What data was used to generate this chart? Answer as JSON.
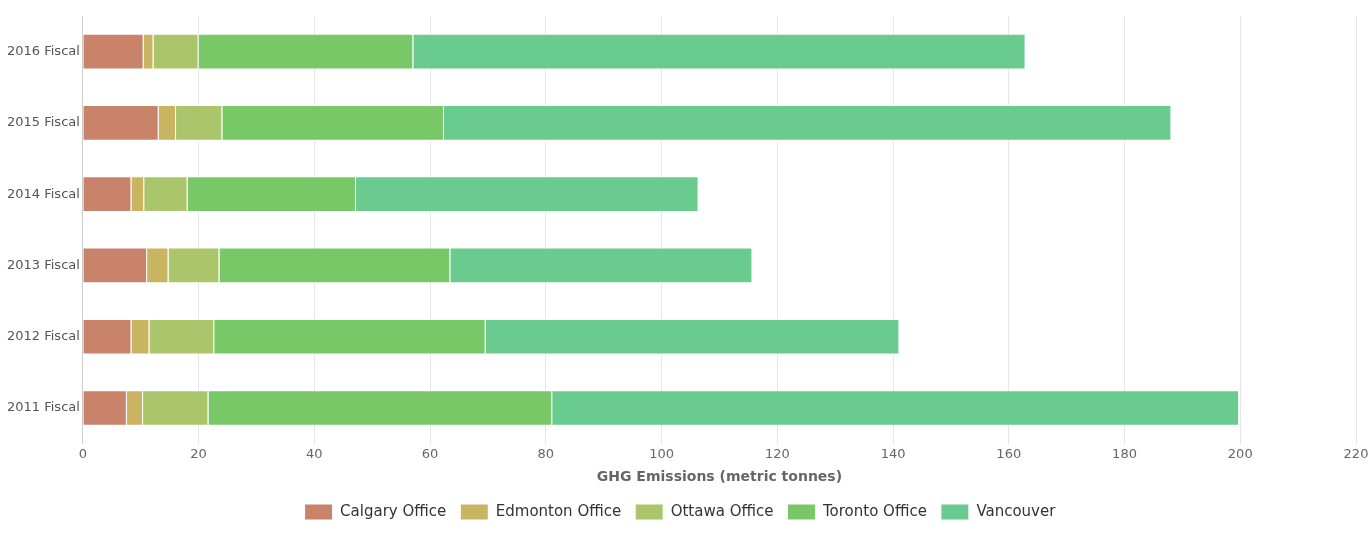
{
  "chart_data": {
    "type": "bar",
    "orientation": "horizontal",
    "stacked": true,
    "categories": [
      "2016 Fiscal",
      "2015 Fiscal",
      "2014 Fiscal",
      "2013 Fiscal",
      "2012 Fiscal",
      "2011 Fiscal"
    ],
    "series": [
      {
        "name": "Calgary Office",
        "color": "#c8836a",
        "values": [
          10.5,
          13.1,
          8.4,
          11.1,
          8.4,
          7.6
        ]
      },
      {
        "name": "Edmonton Office",
        "color": "#c9b462",
        "values": [
          1.7,
          3.0,
          2.2,
          3.7,
          3.1,
          2.8
        ]
      },
      {
        "name": "Ottawa Office",
        "color": "#abc66a",
        "values": [
          7.8,
          8.0,
          7.5,
          8.8,
          11.2,
          11.3
        ]
      },
      {
        "name": "Toronto Office",
        "color": "#78c868",
        "values": [
          37.1,
          38.3,
          29.1,
          39.9,
          46.9,
          59.4
        ]
      },
      {
        "name": "Vancouver",
        "color": "#69cb8e",
        "values": [
          105.8,
          125.7,
          59.2,
          52.2,
          71.5,
          118.7
        ]
      }
    ],
    "xlabel": "GHG Emissions (metric tonnes)",
    "xlim": [
      0,
      220
    ],
    "xticks": [
      0,
      20,
      40,
      60,
      80,
      100,
      120,
      140,
      160,
      180,
      200,
      220
    ],
    "grid": "x",
    "legend": "bottom"
  }
}
